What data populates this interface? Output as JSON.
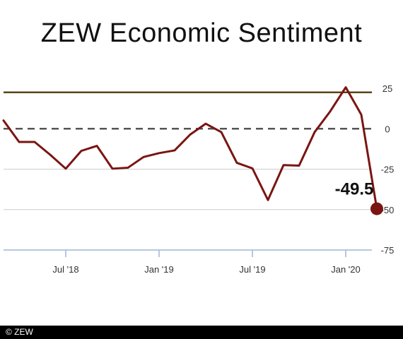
{
  "title": "ZEW Economic Sentiment",
  "footer": "© ZEW",
  "colors": {
    "series": "#7a1512",
    "reference_line": "#5a4616",
    "zero_line": "#555555",
    "grid": "#cccccc",
    "axis": "#9fb6d2"
  },
  "chart_data": {
    "type": "line",
    "title": "ZEW Economic Sentiment",
    "xlabel": "",
    "ylabel": "",
    "ylim": [
      -75,
      25
    ],
    "yticks": [
      25,
      0,
      -25,
      -50,
      -75
    ],
    "xticks": [
      {
        "label": "Jul '18",
        "index": 4
      },
      {
        "label": "Jan '19",
        "index": 10
      },
      {
        "label": "Jul '19",
        "index": 16
      },
      {
        "label": "Jan '20",
        "index": 22
      }
    ],
    "reference_line": 22.5,
    "zero_line": 0,
    "grid": true,
    "series": [
      {
        "x": [
          "Mar '18",
          "Apr '18",
          "May '18",
          "Jun '18",
          "Jul '18",
          "Aug '18",
          "Sep '18",
          "Oct '18",
          "Nov '18",
          "Dec '18",
          "Jan '19",
          "Feb '19",
          "Mar '19",
          "Apr '19",
          "May '19",
          "Jun '19",
          "Jul '19",
          "Aug '19",
          "Sep '19",
          "Oct '19",
          "Nov '19",
          "Dec '19",
          "Jan '20",
          "Feb '20",
          "Mar '20"
        ],
        "values": [
          5.1,
          -8.2,
          -8.2,
          -16.1,
          -24.7,
          -13.7,
          -10.6,
          -24.7,
          -24.1,
          -17.5,
          -15.1,
          -13.4,
          -3.6,
          3.1,
          -2.1,
          -21.1,
          -24.5,
          -44.1,
          -22.5,
          -22.8,
          -2.1,
          10.7,
          25.6,
          8.7,
          -49.5
        ]
      }
    ],
    "annotations": [
      {
        "text": "-49.5",
        "point_index": 24
      }
    ]
  }
}
